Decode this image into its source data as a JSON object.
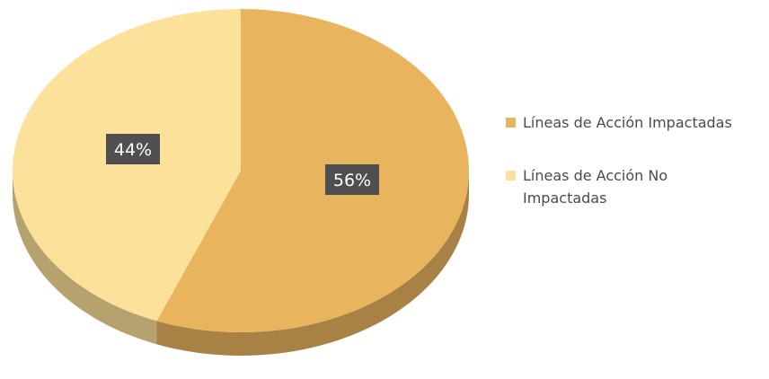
{
  "chart_data": {
    "type": "pie",
    "slices": [
      {
        "label": "Líneas de Acción Impactadas",
        "value": 56,
        "data_label": "56%",
        "color": "#E8B55E"
      },
      {
        "label": "Líneas de Acción No Impactadas",
        "value": 44,
        "data_label": "44%",
        "color": "#FCE19A"
      }
    ],
    "legend_position": "right",
    "label_box_color": "#4F4F4F",
    "label_text_color": "#FFFFFF"
  }
}
